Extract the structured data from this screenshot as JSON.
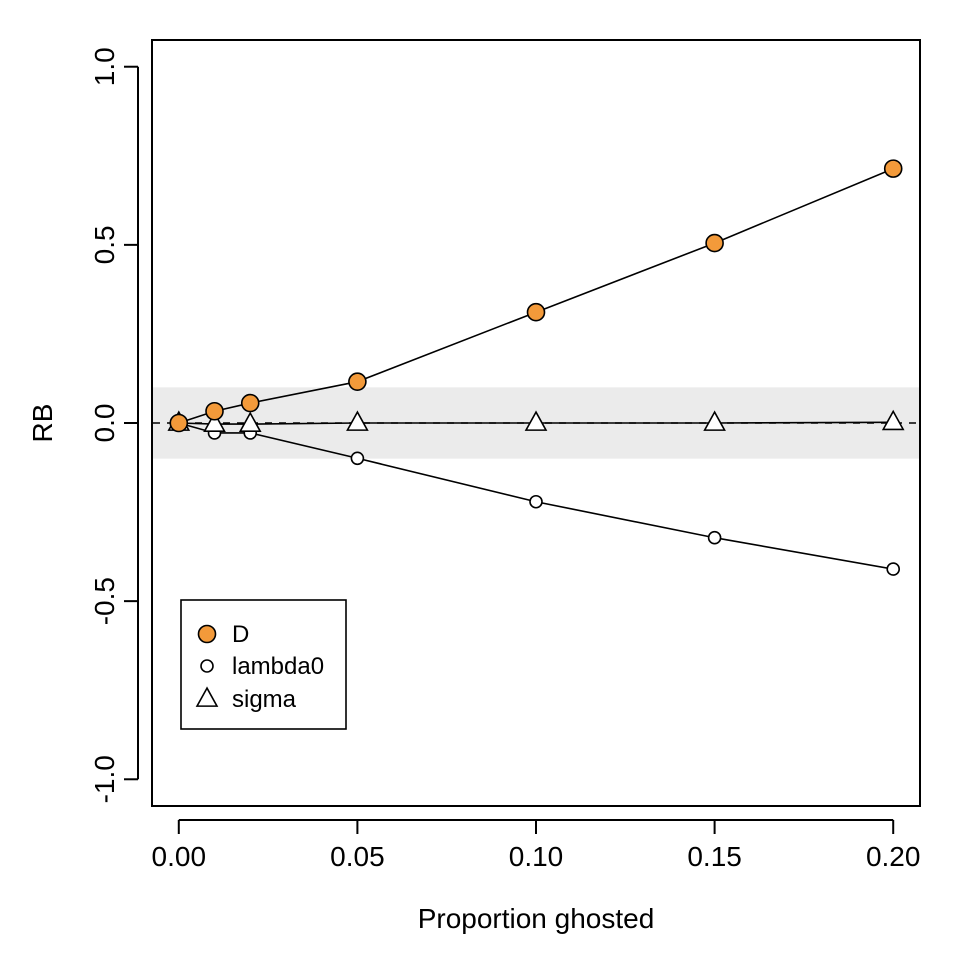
{
  "chart_data": {
    "type": "line",
    "title": "",
    "xlabel": "Proportion ghosted",
    "ylabel": "RB",
    "xlim": [
      -0.0075,
      0.2075
    ],
    "ylim": [
      -1.075,
      1.075
    ],
    "x_ticks": [
      0.0,
      0.05,
      0.1,
      0.15,
      0.2
    ],
    "x_tick_labels": [
      "0.00",
      "0.05",
      "0.10",
      "0.15",
      "0.20"
    ],
    "y_ticks": [
      -1.0,
      -0.5,
      0.0,
      0.5,
      1.0
    ],
    "y_tick_labels": [
      "-1.0",
      "-0.5",
      "0.0",
      "0.5",
      "1.0"
    ],
    "grid": false,
    "reference_band": [
      -0.1,
      0.1
    ],
    "reference_line": 0,
    "legend_position": "bottom-left",
    "x": [
      0.0,
      0.01,
      0.02,
      0.05,
      0.1,
      0.15,
      0.2
    ],
    "series": [
      {
        "name": "D",
        "marker": "filled-circle",
        "color": "#F39A3A",
        "values": [
          0.0,
          0.033,
          0.056,
          0.116,
          0.311,
          0.505,
          0.714
        ]
      },
      {
        "name": "lambda0",
        "marker": "open-circle",
        "color": "#ffffff",
        "values": [
          0.0,
          -0.028,
          -0.028,
          -0.099,
          -0.221,
          -0.322,
          -0.41
        ]
      },
      {
        "name": "sigma",
        "marker": "open-triangle",
        "color": "#ffffff",
        "values": [
          0.0,
          -0.003,
          -0.003,
          0.0,
          0.0,
          0.0,
          0.002
        ]
      }
    ]
  }
}
